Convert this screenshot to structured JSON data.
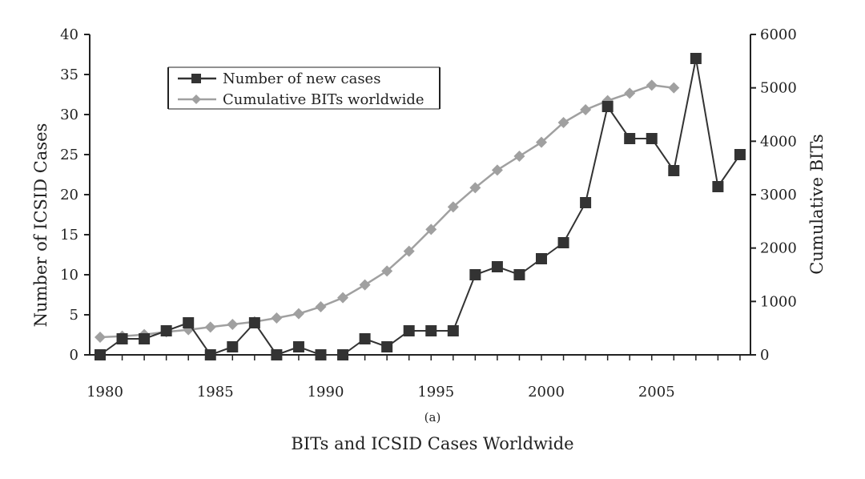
{
  "chart_data": {
    "type": "line",
    "title": "BITs and ICSID Cases Worldwide",
    "sublabel": "(a)",
    "xlabel": "",
    "ylabel_left": "Number of ICSID Cases",
    "ylabel_right": "Cumulative BITs",
    "xlim": [
      1980,
      2009
    ],
    "ylim_left": [
      0,
      40
    ],
    "ylim_right": [
      0,
      6000
    ],
    "x_ticks": [
      "1980",
      "1985",
      "1990",
      "1995",
      "2000",
      "2005"
    ],
    "y_ticks_left": [
      "0",
      "5",
      "10",
      "15",
      "20",
      "25",
      "30",
      "35",
      "40"
    ],
    "y_ticks_right": [
      "0",
      "1000",
      "2000",
      "3000",
      "4000",
      "5000",
      "6000"
    ],
    "grid": false,
    "legend_position": "top-left",
    "series": [
      {
        "name": "Number of new cases",
        "axis": "left",
        "marker": "square",
        "color": "#333333",
        "x": [
          1980,
          1981,
          1982,
          1983,
          1984,
          1985,
          1986,
          1987,
          1988,
          1989,
          1990,
          1991,
          1992,
          1993,
          1994,
          1995,
          1996,
          1997,
          1998,
          1999,
          2000,
          2001,
          2002,
          2003,
          2004,
          2005,
          2006,
          2007,
          2008,
          2009
        ],
        "y": [
          0,
          2,
          2,
          3,
          4,
          0,
          1,
          4,
          0,
          1,
          0,
          0,
          2,
          1,
          3,
          3,
          3,
          10,
          11,
          10,
          12,
          14,
          19,
          31,
          27,
          27,
          23,
          37,
          21,
          25
        ]
      },
      {
        "name": "Cumulative BITs worldwide",
        "axis": "right",
        "marker": "diamond",
        "color": "#a0a0a0",
        "x": [
          1980,
          1981,
          1982,
          1983,
          1984,
          1985,
          1986,
          1987,
          1988,
          1989,
          1990,
          1991,
          1992,
          1993,
          1994,
          1995,
          1996,
          1997,
          1998,
          1999,
          2000,
          2001,
          2002,
          2003,
          2004,
          2005,
          2006
        ],
        "y": [
          330,
          350,
          380,
          430,
          470,
          520,
          570,
          620,
          690,
          770,
          900,
          1070,
          1310,
          1570,
          1940,
          2350,
          2770,
          3130,
          3460,
          3720,
          3980,
          4350,
          4590,
          4760,
          4900,
          5050,
          5000
        ]
      }
    ]
  }
}
